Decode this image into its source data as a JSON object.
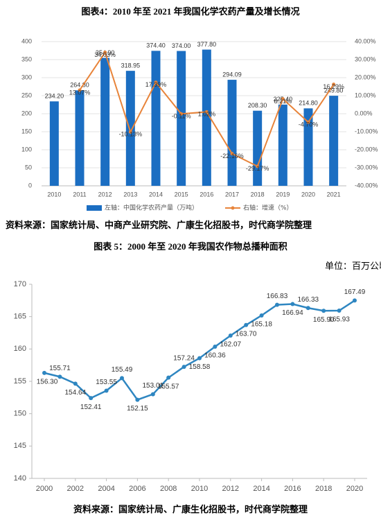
{
  "chart_data": [
    {
      "type": "bar",
      "title": "图表4：2010 年至 2021 年我国化学农药产量及增长情况",
      "source": "资料来源：国家统计局、中商产业研究院、广康生化招股书，时代商学院整理",
      "categories": [
        "2010",
        "2011",
        "2012",
        "2013",
        "2014",
        "2015",
        "2016",
        "2017",
        "2018",
        "2019",
        "2020",
        "2021"
      ],
      "series": [
        {
          "name": "左轴：中国化学农药产量（万吨）",
          "color": "#1b6ec2",
          "values": [
            234.2,
            264.8,
            354.9,
            318.95,
            374.4,
            374.0,
            377.8,
            294.09,
            208.3,
            225.4,
            214.8,
            249.8
          ],
          "value_labels": [
            "234.20",
            "264.80",
            "354.90",
            "318.95",
            "374.40",
            "374.00",
            "377.80",
            "294.09",
            "208.30",
            "225.40",
            "214.80",
            "249.80"
          ]
        },
        {
          "name": "右轴：增速（%）",
          "color": "#e8843a",
          "type": "line",
          "axis": "y2",
          "values": [
            null,
            13.07,
            34.03,
            -10.13,
            17.39,
            -0.11,
            1.02,
            -22.16,
            -29.17,
            8.21,
            -4.7,
            16.29
          ],
          "value_labels": [
            null,
            "13.07%",
            "34.03%",
            "-10.13%",
            "17.39%",
            "-0.11%",
            "1.02%",
            "-22.16%",
            "-29.17%",
            "8.21%",
            "-4.70%",
            "16.29%"
          ]
        }
      ],
      "ylim": [
        0,
        400
      ],
      "yticks": [
        0,
        50,
        100,
        150,
        200,
        250,
        300,
        350,
        400
      ],
      "y2lim": [
        -40,
        40
      ],
      "y2ticks": [
        {
          "value": -40,
          "label": "-40.00%"
        },
        {
          "value": -30,
          "label": "-30.00%"
        },
        {
          "value": -20,
          "label": "-20.00%"
        },
        {
          "value": -10,
          "label": "-10.00%"
        },
        {
          "value": 0,
          "label": "0.00%"
        },
        {
          "value": 10,
          "label": "10.00%"
        },
        {
          "value": 20,
          "label": "20.00%"
        },
        {
          "value": 30,
          "label": "30.00%"
        },
        {
          "value": 40,
          "label": "40.00%"
        }
      ],
      "grid": true,
      "legend": "bottom"
    },
    {
      "type": "line",
      "title": "图表 5：2000 年至 2020 年我国农作物总播种面积",
      "unit": "单位：百万公顷",
      "source": "资料来源：国家统计局、广康生化招股书，时代商学院整理",
      "x": [
        2000,
        2001,
        2002,
        2003,
        2004,
        2005,
        2006,
        2007,
        2008,
        2009,
        2010,
        2011,
        2012,
        2013,
        2014,
        2015,
        2016,
        2017,
        2018,
        2019,
        2020
      ],
      "series": [
        {
          "color": "#2e86c1",
          "values": [
            156.3,
            155.71,
            154.64,
            152.41,
            153.55,
            155.49,
            152.15,
            153.01,
            155.57,
            157.24,
            158.58,
            160.36,
            162.07,
            163.7,
            165.18,
            166.83,
            166.94,
            166.33,
            165.9,
            165.93,
            167.49
          ],
          "value_labels": [
            "156.30",
            "155.71",
            "154.64",
            "152.41",
            "153.55",
            "155.49",
            "152.15",
            "153.01",
            "155.57",
            "157.24",
            "158.58",
            "160.36",
            "162.07",
            "163.70",
            "165.18",
            "166.83",
            "166.94",
            "166.33",
            "165.90",
            "165.93",
            "167.49"
          ]
        }
      ],
      "xlim": [
        2000,
        2020
      ],
      "xticks": [
        2000,
        2002,
        2004,
        2006,
        2008,
        2010,
        2012,
        2014,
        2016,
        2018,
        2020
      ],
      "ylim": [
        140,
        170
      ],
      "yticks": [
        140,
        145,
        150,
        155,
        160,
        165,
        170
      ],
      "grid": false
    }
  ]
}
